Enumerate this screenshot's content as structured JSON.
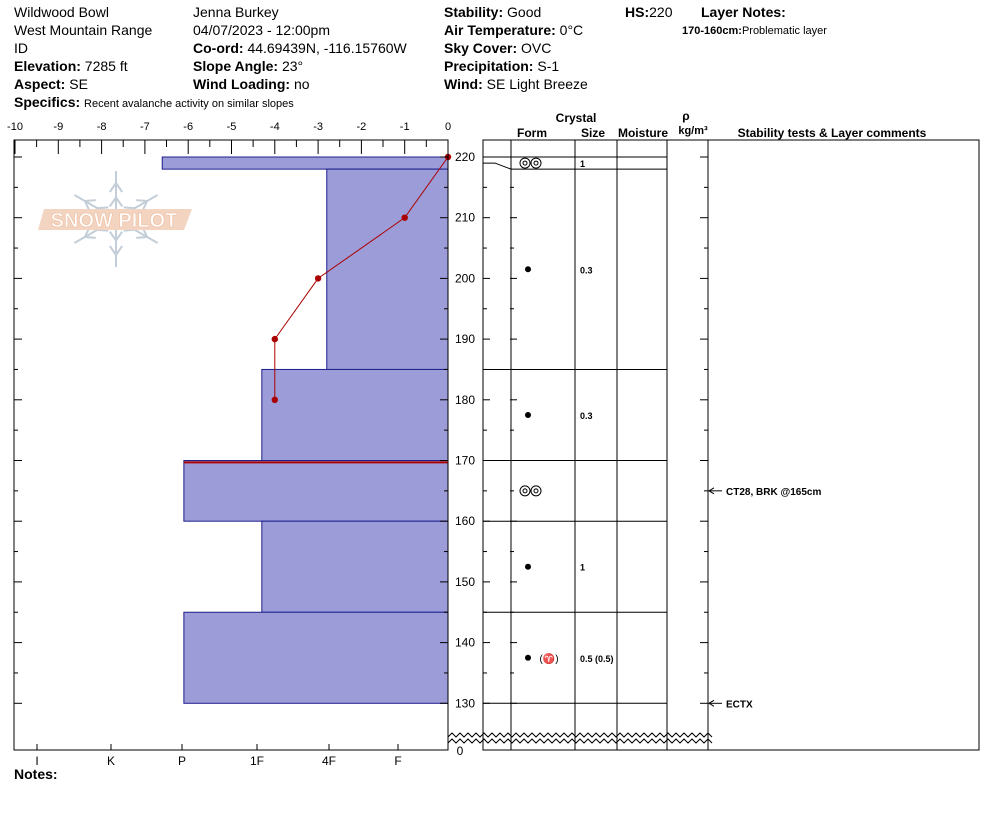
{
  "header": {
    "location": "Wildwood Bowl",
    "range": "West Mountain Range",
    "state": "ID",
    "elevation_label": "Elevation:",
    "elevation": "7285 ft",
    "aspect_label": "Aspect:",
    "aspect": "SE",
    "specifics_label": "Specifics:",
    "specifics": "Recent avalanche activity on similar slopes",
    "observer": "Jenna Burkey",
    "datetime": "04/07/2023 - 12:00pm",
    "coord_label": "Co-ord:",
    "coord": "44.69439N, -116.15760W",
    "slope_label": "Slope Angle:",
    "slope": "23°",
    "wind_loading_label": "Wind Loading:",
    "wind_loading": "no",
    "stability_label": "Stability:",
    "stability": "Good",
    "air_temp_label": "Air Temperature:",
    "air_temp": "0°C",
    "sky_label": "Sky Cover:",
    "sky": "OVC",
    "precip_label": "Precipitation:",
    "precip": "S-1",
    "wind_label": "Wind:",
    "wind": "SE Light Breeze",
    "hs_label": "HS:",
    "hs": "220",
    "layer_notes_label": "Layer Notes:",
    "layer_note_range": "170-160cm:",
    "layer_note_text": "Problematic layer",
    "notes_label": "Notes:"
  },
  "logo_text": "SNOW PILOT",
  "chart_data": {
    "type": "snow_profile",
    "temp_axis": {
      "ticks": [
        -10,
        -9,
        -8,
        -7,
        -6,
        -5,
        -4,
        -3,
        -2,
        -1,
        0
      ],
      "range": [
        -10,
        0
      ]
    },
    "height_axis": {
      "ticks": [
        220,
        210,
        200,
        190,
        180,
        170,
        160,
        150,
        140,
        130
      ],
      "range": [
        126,
        222
      ],
      "bottom_label": "0"
    },
    "hardness_axis": {
      "labels": [
        "I",
        "K",
        "P",
        "1F",
        "4F",
        "F"
      ]
    },
    "temperature_profile": [
      {
        "height": 220,
        "temp": 0
      },
      {
        "height": 210,
        "temp": -1
      },
      {
        "height": 200,
        "temp": -3
      },
      {
        "height": 190,
        "temp": -4
      },
      {
        "height": 180,
        "temp": -4
      }
    ],
    "layers": [
      {
        "top": 220,
        "bottom": 218,
        "hardness": "P-",
        "hardness_value": 6.6,
        "form": "rounding faceted",
        "size": "1"
      },
      {
        "top": 218,
        "bottom": 185,
        "hardness": "4F",
        "hardness_value": 2.8,
        "form": "rounded grains",
        "size": "0.3"
      },
      {
        "top": 185,
        "bottom": 170,
        "hardness": "1F",
        "hardness_value": 4.3,
        "form": "rounded grains",
        "size": "0.3"
      },
      {
        "top": 170,
        "bottom": 160,
        "hardness": "P",
        "hardness_value": 6.1,
        "form": "rounding faceted",
        "size": ""
      },
      {
        "top": 160,
        "bottom": 145,
        "hardness": "1F",
        "hardness_value": 4.3,
        "form": "rounded grains",
        "size": "1"
      },
      {
        "top": 145,
        "bottom": 130,
        "hardness": "P",
        "hardness_value": 6.1,
        "form": "rounded grains (melt-freeze)",
        "size": "0.5 (0.5)"
      }
    ],
    "problem_layer_height": 169.7,
    "column_headers": {
      "crystal": "Crystal",
      "form": "Form",
      "size": "Size",
      "moisture": "Moisture",
      "rho": "ρ",
      "density": "kg/m³",
      "comments": "Stability tests & Layer comments"
    },
    "stability_tests": [
      {
        "height": 165,
        "text": "CT28, BRK @165cm"
      },
      {
        "height": 130,
        "text": "ECTX"
      }
    ],
    "colors": {
      "layer_fill": "#9c9cd8",
      "layer_stroke": "#1e1e8c",
      "temperature": "#aa0000"
    }
  }
}
